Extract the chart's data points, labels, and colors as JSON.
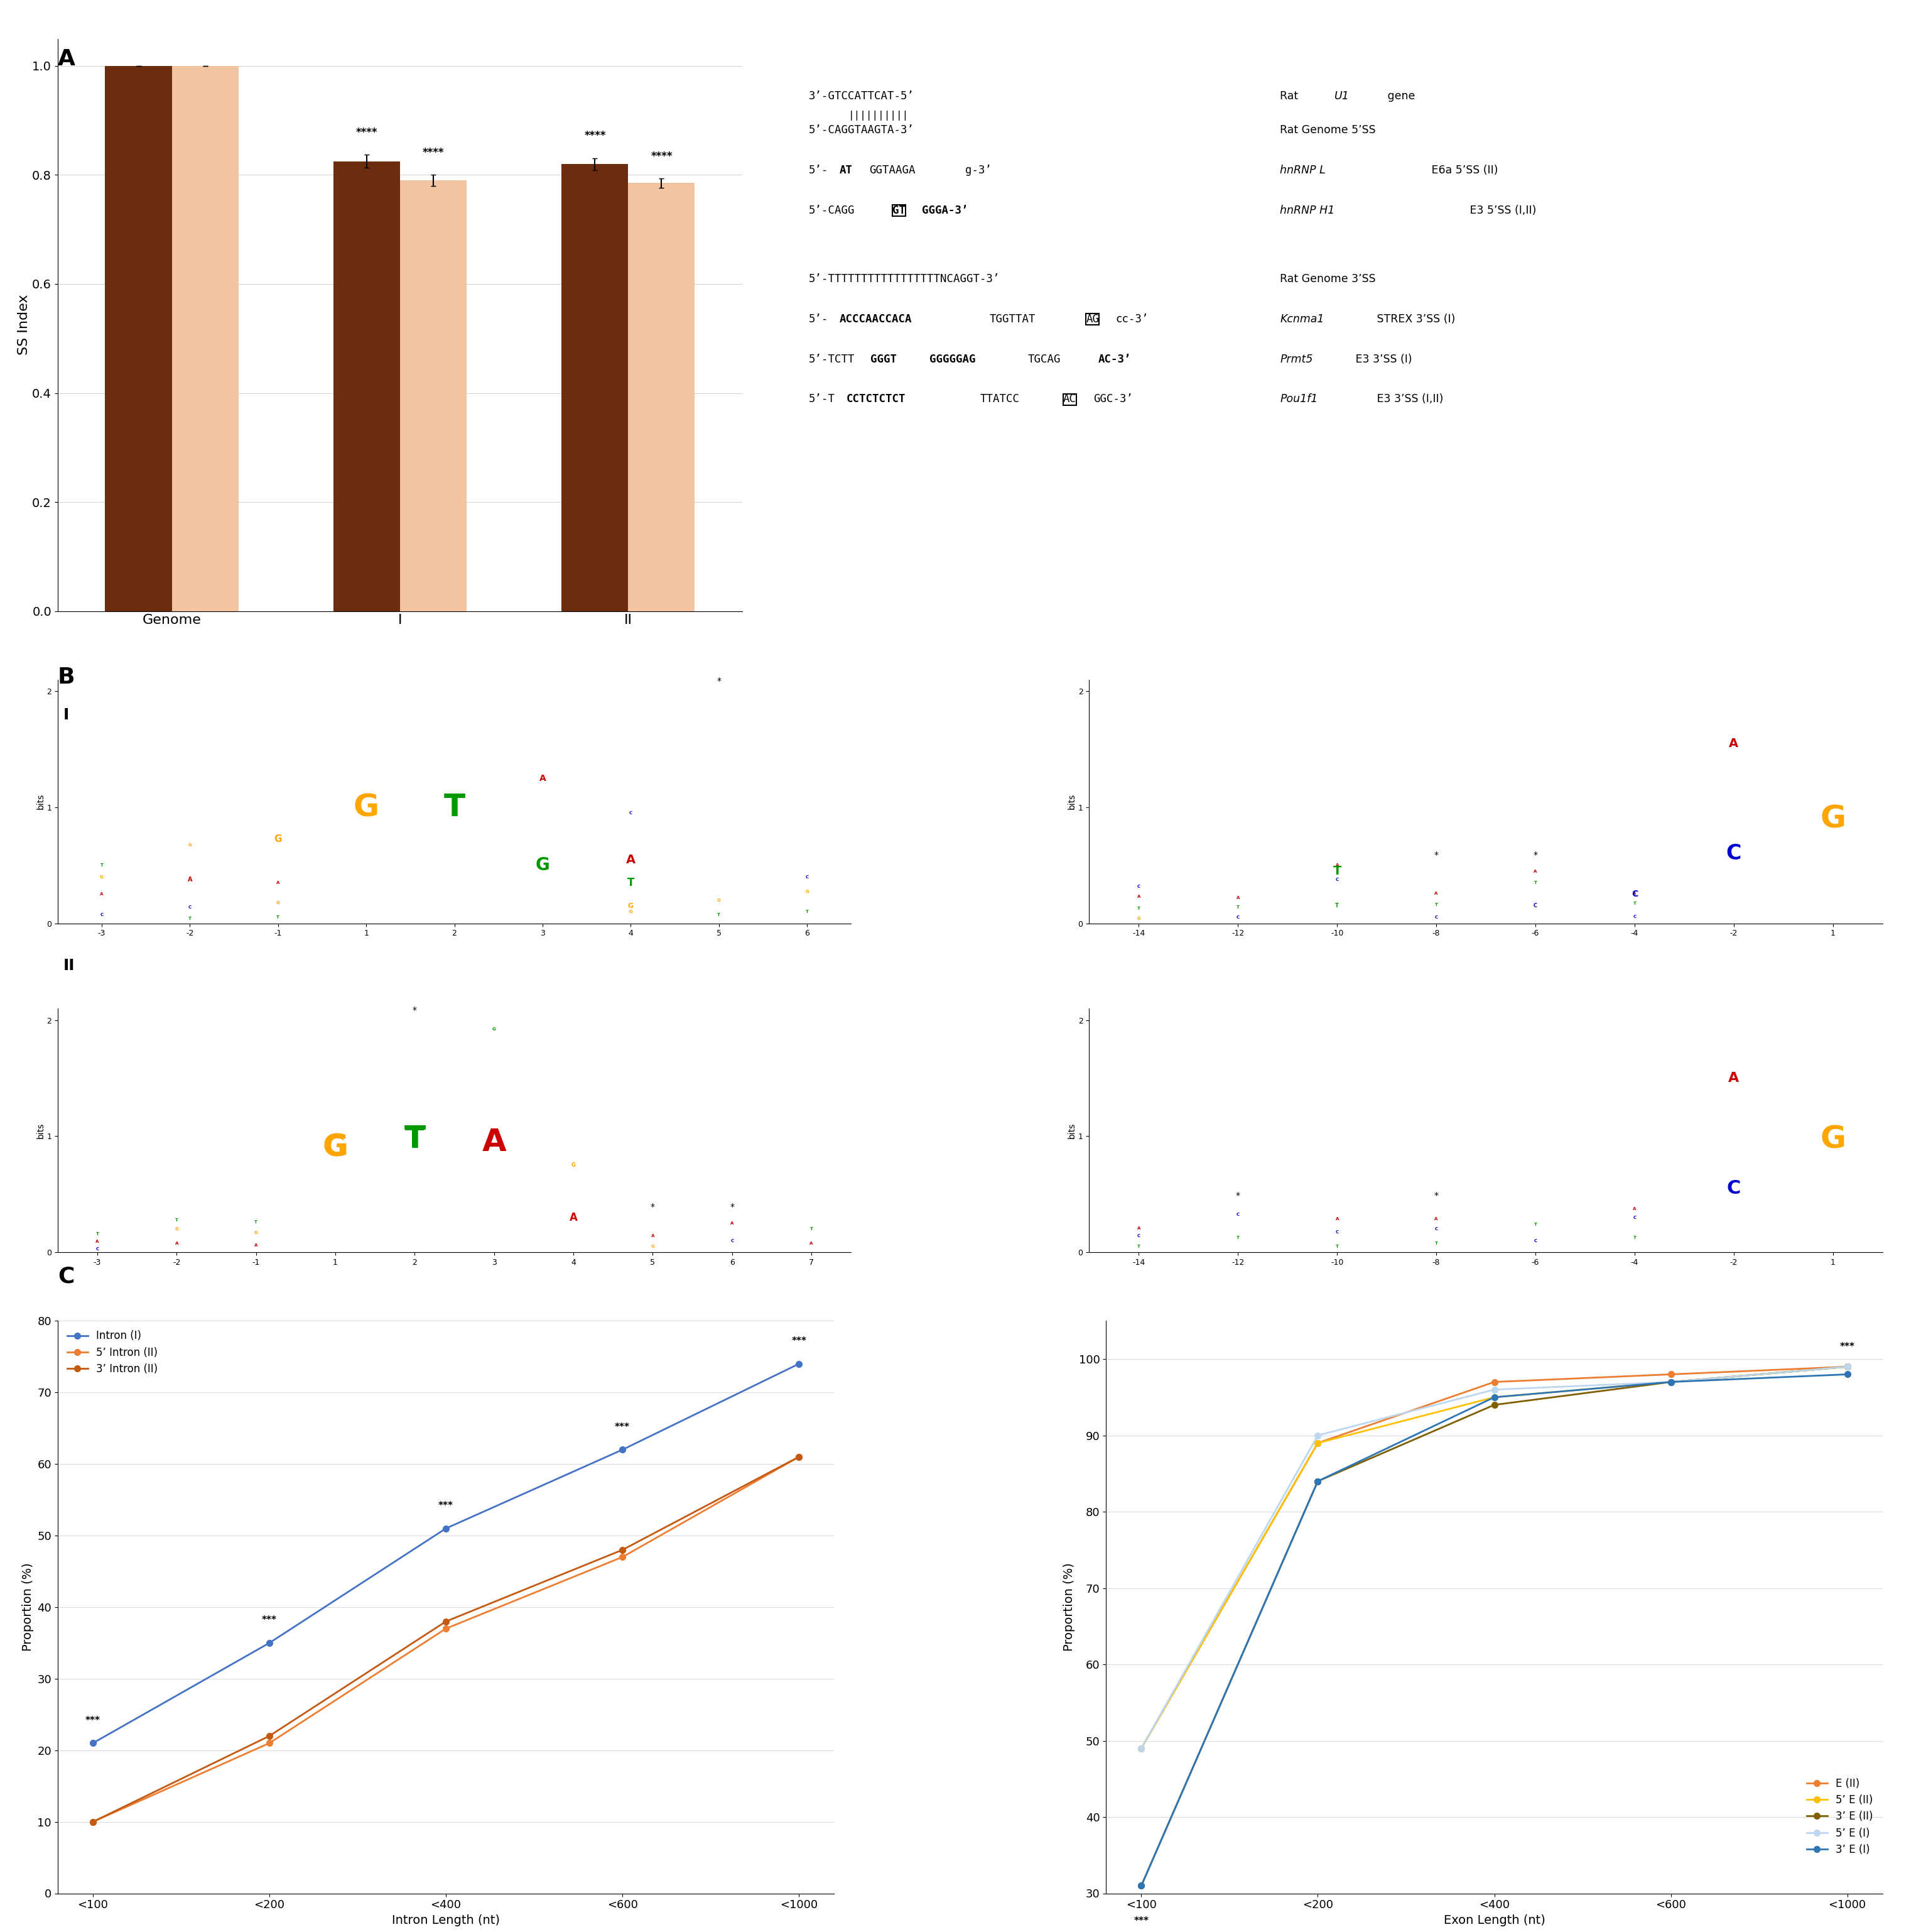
{
  "panel_A": {
    "bar_groups": [
      "Genome",
      "I",
      "II"
    ],
    "five_ss_values": [
      1.0,
      0.825,
      0.82
    ],
    "three_ss_values": [
      1.0,
      0.79,
      0.785
    ],
    "five_ss_err": [
      0.0,
      0.012,
      0.011
    ],
    "three_ss_err": [
      0.0,
      0.01,
      0.009
    ],
    "five_ss_color": "#6B2D0E",
    "three_ss_color": "#F2C4A0",
    "ylabel": "SS Index",
    "ylim": [
      0,
      1.05
    ],
    "yticks": [
      0,
      0.2,
      0.4,
      0.6,
      0.8,
      1
    ],
    "significance_I_5ss": "****",
    "significance_I_3ss": "****",
    "significance_II_5ss": "****",
    "significance_II_3ss": "****",
    "sequences_5ss": [
      "3’-GTCCATTCAT-5’",
      "5’-CAGGTAAGTA-3’",
      "5’-ATGGTAAGAg-3’",
      "5’-CAGGTGGGgA-3’"
    ],
    "sequences_5ss_labels": [
      "Rat U1 gene",
      "Rat Genome 5’SS",
      "hnRNP L E6a 5’SS (II)",
      "hnRNP H1 E3 5’SS (I,II)"
    ],
    "sequences_3ss": [
      "5’-TTTTTTTTTTTTTTTTTNCAGGT-3’",
      "5’-ACCCAACCACATGGTTATAGcc-3’",
      "5’-TCTTGGGTGGGGGAGTGCAGac-3’",
      "5’-TCCTCTCTCTTTATCCACAGGC-3’"
    ],
    "sequences_3ss_labels": [
      "Rat Genome 3’SS",
      "Kcnma1 STREX 3’SS (I)",
      "Prmt5 E3 3’SS (I)",
      "Pou1f1 E3 3’SS (I,II)"
    ]
  },
  "panel_C_left": {
    "categories": [
      "<100",
      "<200",
      "<400",
      "<600",
      "<1000"
    ],
    "intron_I": [
      21,
      35,
      51,
      62,
      74
    ],
    "intron_5II": [
      10,
      21,
      37,
      47,
      61
    ],
    "intron_3II": [
      10,
      22,
      38,
      48,
      61
    ],
    "colors": [
      "#4472C4",
      "#ED7D31",
      "#C45911"
    ],
    "labels": [
      "Intron (I)",
      "5’ Intron (II)",
      "3’ Intron (II)"
    ],
    "xlabel": "Intron Length (nt)",
    "ylabel": "Proportion (%)",
    "ylim": [
      0,
      80
    ],
    "yticks": [
      0,
      10,
      20,
      30,
      40,
      50,
      60,
      70,
      80
    ],
    "significance": [
      "***",
      "***",
      "***",
      "***",
      "***"
    ]
  },
  "panel_C_right": {
    "categories": [
      "<100",
      "<200",
      "<400",
      "<600",
      "<1000"
    ],
    "E_II": [
      49,
      89,
      97,
      98,
      99
    ],
    "five_E_II": [
      49,
      89,
      95,
      97,
      99
    ],
    "three_E_II": [
      31,
      84,
      94,
      97,
      99
    ],
    "five_E_I": [
      49,
      90,
      96,
      97,
      99
    ],
    "three_E_I": [
      31,
      84,
      95,
      97,
      98
    ],
    "colors": [
      "#ED7D31",
      "#FFC000",
      "#7F6000",
      "#BDD7EE",
      "#2E75B6"
    ],
    "labels": [
      "E (II)",
      "5’ E (II)",
      "3’ E (II)",
      "5’ E (I)",
      "3’ E (I)"
    ],
    "xlabel": "Exon Length (nt)",
    "ylabel": "Proportion (%)",
    "ylim": [
      30,
      105
    ],
    "yticks": [
      30,
      40,
      50,
      60,
      70,
      80,
      90,
      100
    ],
    "significance": [
      "***",
      "",
      "",
      "",
      "***"
    ]
  }
}
